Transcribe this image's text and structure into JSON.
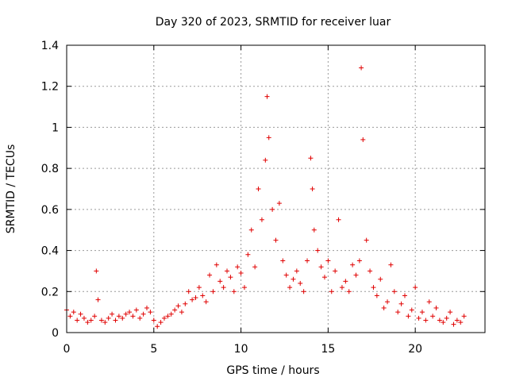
{
  "chart_data": {
    "type": "scatter",
    "title": "Day 320 of 2023, SRMTID for receiver luar",
    "xlabel": "GPS time / hours",
    "ylabel": "SRMTID / TECUs",
    "xlim": [
      0,
      24
    ],
    "ylim": [
      0,
      1.4
    ],
    "xticks": [
      0,
      5,
      10,
      15,
      20
    ],
    "xtick_labels": [
      "0",
      "5",
      "10",
      "15",
      "20"
    ],
    "yticks": [
      0,
      0.2,
      0.4,
      0.6,
      0.8,
      1.0,
      1.2,
      1.4
    ],
    "ytick_labels": [
      "0",
      "0.2",
      "0.4",
      "0.6",
      "0.8",
      "1",
      "1.2",
      "1.4"
    ],
    "grid": true,
    "marker": "+",
    "marker_color": "#e00000",
    "series": [
      {
        "name": "SRMTID",
        "x": [
          0.0,
          0.2,
          0.4,
          0.6,
          0.8,
          1.0,
          1.2,
          1.4,
          1.6,
          1.7,
          1.8,
          2.0,
          2.2,
          2.4,
          2.6,
          2.8,
          3.0,
          3.2,
          3.4,
          3.6,
          3.8,
          4.0,
          4.2,
          4.4,
          4.6,
          4.8,
          5.0,
          5.2,
          5.4,
          5.6,
          5.8,
          6.0,
          6.2,
          6.4,
          6.6,
          6.8,
          7.0,
          7.2,
          7.4,
          7.6,
          7.8,
          8.0,
          8.2,
          8.4,
          8.6,
          8.8,
          9.0,
          9.2,
          9.4,
          9.6,
          9.8,
          10.0,
          10.2,
          10.4,
          10.6,
          10.8,
          11.0,
          11.2,
          11.4,
          11.5,
          11.6,
          11.8,
          12.0,
          12.2,
          12.4,
          12.6,
          12.8,
          13.0,
          13.2,
          13.4,
          13.6,
          13.8,
          14.0,
          14.1,
          14.2,
          14.4,
          14.6,
          14.8,
          15.0,
          15.2,
          15.4,
          15.6,
          15.8,
          16.0,
          16.2,
          16.4,
          16.6,
          16.8,
          16.9,
          17.0,
          17.2,
          17.4,
          17.6,
          17.8,
          18.0,
          18.2,
          18.4,
          18.6,
          18.8,
          19.0,
          19.2,
          19.4,
          19.6,
          19.8,
          20.0,
          20.2,
          20.4,
          20.6,
          20.8,
          21.0,
          21.2,
          21.4,
          21.6,
          21.8,
          22.0,
          22.2,
          22.4,
          22.6,
          22.8
        ],
        "y": [
          0.11,
          0.08,
          0.1,
          0.06,
          0.09,
          0.07,
          0.05,
          0.06,
          0.08,
          0.3,
          0.16,
          0.06,
          0.05,
          0.07,
          0.09,
          0.06,
          0.08,
          0.07,
          0.09,
          0.1,
          0.08,
          0.11,
          0.07,
          0.09,
          0.12,
          0.1,
          0.06,
          0.03,
          0.05,
          0.07,
          0.08,
          0.09,
          0.11,
          0.13,
          0.1,
          0.14,
          0.2,
          0.16,
          0.17,
          0.22,
          0.18,
          0.15,
          0.28,
          0.2,
          0.33,
          0.25,
          0.22,
          0.3,
          0.27,
          0.2,
          0.32,
          0.29,
          0.22,
          0.38,
          0.5,
          0.32,
          0.7,
          0.55,
          0.84,
          1.15,
          0.95,
          0.6,
          0.45,
          0.63,
          0.35,
          0.28,
          0.22,
          0.26,
          0.3,
          0.24,
          0.2,
          0.35,
          0.85,
          0.7,
          0.5,
          0.4,
          0.32,
          0.27,
          0.35,
          0.2,
          0.3,
          0.55,
          0.22,
          0.25,
          0.2,
          0.33,
          0.28,
          0.35,
          1.29,
          0.94,
          0.45,
          0.3,
          0.22,
          0.18,
          0.26,
          0.12,
          0.15,
          0.33,
          0.2,
          0.1,
          0.14,
          0.18,
          0.08,
          0.11,
          0.22,
          0.07,
          0.1,
          0.06,
          0.15,
          0.08,
          0.12,
          0.06,
          0.05,
          0.07,
          0.1,
          0.04,
          0.06,
          0.05,
          0.08
        ]
      }
    ]
  }
}
